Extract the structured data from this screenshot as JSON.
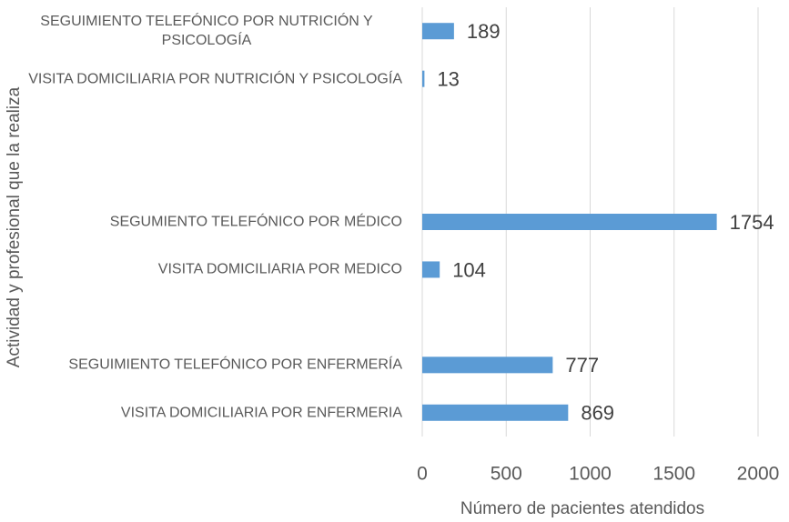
{
  "chart_data": {
    "type": "bar",
    "orientation": "horizontal",
    "xlabel": "Número de pacientes atendidos",
    "ylabel": "Actividad y profesional que la realiza",
    "categories": [
      "SEGUIMIENTO TELEFÓNICO POR NUTRICIÓN Y PSICOLOGÍA",
      "VISITA DOMICILIARIA POR NUTRICIÓN Y PSICOLOGÍA",
      null,
      null,
      "SEGUMIENTO TELEFÓNICO POR MÉDICO",
      "VISITA DOMICILIARIA POR MEDICO",
      null,
      "SEGUIMIENTO TELEFÓNICO POR ENFERMERÍA",
      "VISITA DOMICILIARIA POR ENFERMERIA"
    ],
    "values": [
      189,
      13,
      null,
      null,
      1754,
      104,
      null,
      777,
      869
    ],
    "color": "#5b9bd5",
    "xlim": [
      0,
      2000
    ],
    "xticks": [
      0,
      500,
      1000,
      1500,
      2000
    ],
    "grid": true
  }
}
